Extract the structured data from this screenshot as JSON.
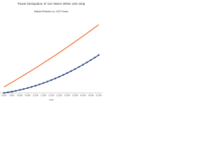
{
  "chart_data": {
    "type": "line",
    "title": "Power Dissipation of 12V Warm White LED Strip",
    "subtitle": "Ballast Resistor vs. LED Power",
    "x_label": "Volts",
    "x": [
      9,
      9.25,
      9.5,
      9.75,
      10,
      10.25,
      10.5,
      10.75,
      11,
      11.25,
      11.5,
      11.75,
      12,
      12.25,
      12.5,
      12.75,
      13,
      13.25,
      13.5,
      13.75,
      14,
      14.25,
      14.5,
      14.75,
      15
    ],
    "series": [
      {
        "color": "#f26522",
        "markers": false,
        "values": [
          8,
          11.02,
          14.08,
          17.17,
          20.3,
          23.47,
          26.68,
          29.92,
          33.2,
          36.52,
          39.88,
          43.27,
          46.7,
          50.17,
          53.68,
          57.22,
          60.8,
          64.42,
          68.08,
          71.77,
          75.5,
          79.27,
          83.08,
          86.92,
          90.8
        ]
      },
      {
        "color": "#1f3d7a",
        "markers": true,
        "values": [
          0,
          0.81,
          1.73,
          2.76,
          3.9,
          5.16,
          6.53,
          8.01,
          9.6,
          11.31,
          13.13,
          15.06,
          17.1,
          19.26,
          21.53,
          23.91,
          26.4,
          29.01,
          31.73,
          34.56,
          37.5,
          40.56,
          43.73,
          47.01,
          50.4
        ]
      }
    ],
    "xlim": [
      8.75,
      15.25
    ],
    "xticks": [
      {
        "value": 9,
        "label": "9.000"
      },
      {
        "value": 9.5,
        "label": "9.500"
      },
      {
        "value": 10,
        "label": "10.000"
      },
      {
        "value": 10.5,
        "label": "10.500"
      },
      {
        "value": 11,
        "label": "11.000"
      },
      {
        "value": 11.5,
        "label": "11.500"
      },
      {
        "value": 12,
        "label": "12.000"
      },
      {
        "value": 12.5,
        "label": "12.500"
      },
      {
        "value": 13,
        "label": "13.000"
      },
      {
        "value": 13.5,
        "label": "13.500"
      },
      {
        "value": 14,
        "label": "14.000"
      },
      {
        "value": 14.5,
        "label": "14.500"
      },
      {
        "value": 15,
        "label": "15.000"
      }
    ],
    "ylim": [
      0,
      100
    ]
  }
}
